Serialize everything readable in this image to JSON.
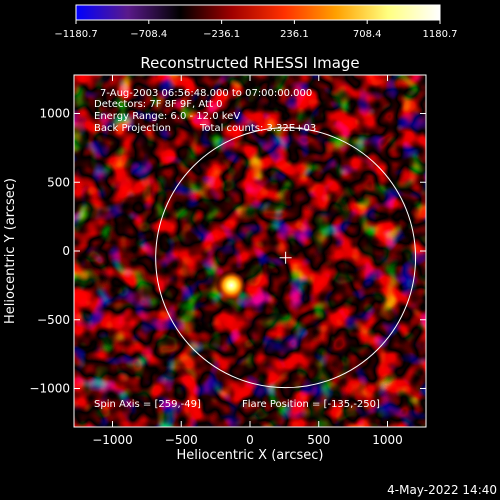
{
  "title": "Reconstructed RHESSI Image",
  "colorbar": {
    "ticks": [
      "-1180.7",
      "-708.4",
      "-236.1",
      "236.1",
      "708.4",
      "1180.7"
    ],
    "min": -1180.7,
    "max": 1180.7,
    "stops": [
      "#0000ff",
      "#5a1a8a",
      "#000000",
      "#a00000",
      "#ff3000",
      "#ffa000",
      "#ffff80",
      "#ffffff"
    ]
  },
  "info": {
    "line1": "7-Aug-2003 06:56:48.000 to 07:00:00.000",
    "line2": "Detectors: 7F 8F 9F, Att 0",
    "line3": "Energy Range: 6.0 - 12.0 keV",
    "line4": "Back Projection",
    "line5": "Total counts: 3.32E+03",
    "spin_axis": "Spin Axis = [259,-49]",
    "flare_position": "Flare Position = [-135,-250]"
  },
  "footer": {
    "date": "4-May-2022 14:40"
  },
  "chart_data": {
    "type": "heatmap",
    "title": "Reconstructed RHESSI Image",
    "xlabel": "Heliocentric X (arcsec)",
    "ylabel": "Heliocentric Y (arcsec)",
    "xlim": [
      -1280,
      1280
    ],
    "ylim": [
      -1280,
      1280
    ],
    "xticks": [
      -1000,
      -500,
      0,
      500,
      1000
    ],
    "yticks": [
      -1000,
      -500,
      0,
      500,
      1000
    ],
    "xtick_labels": [
      "−1000",
      "−500",
      "0",
      "500",
      "1000"
    ],
    "ytick_labels": [
      "−1000",
      "−500",
      "0",
      "500",
      "1000"
    ],
    "solar_limb_radius": 945,
    "sun_center_marker": [
      259,
      -49
    ],
    "peak_source": {
      "x": -135,
      "y": -250
    },
    "value_range": [
      -1180.7,
      1180.7
    ]
  }
}
